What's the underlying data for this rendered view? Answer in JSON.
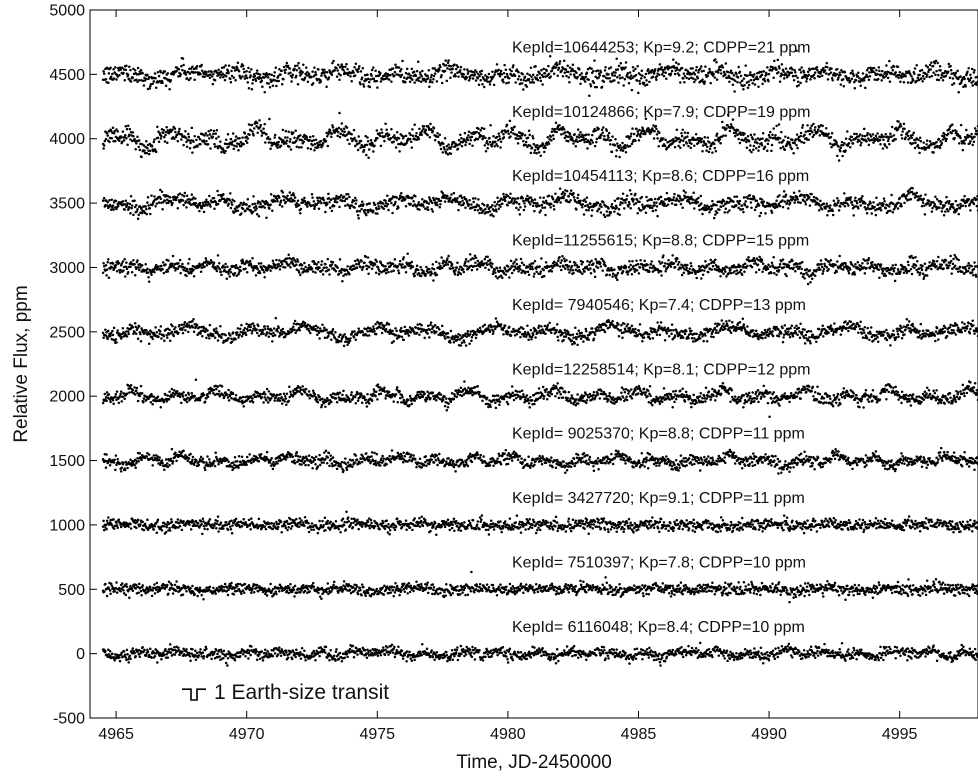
{
  "chart_data": {
    "type": "scatter",
    "xlabel": "Time, JD-2450000",
    "ylabel": "Relative Flux, ppm",
    "xlim": [
      4964,
      4998
    ],
    "ylim": [
      -500,
      5000
    ],
    "xticks": [
      4965,
      4970,
      4975,
      4980,
      4985,
      4990,
      4995
    ],
    "yticks": [
      -500,
      0,
      500,
      1000,
      1500,
      2000,
      2500,
      3000,
      3500,
      4000,
      4500,
      5000
    ],
    "x_start": 4964.5,
    "x_end": 4998,
    "grid": false,
    "legend": {
      "position": "bottom-left",
      "label": "1 Earth-size transit",
      "transit_depth_ppm": 84
    },
    "series": [
      {
        "name": "KepId=10644253; Kp=9.2; CDPP=21 ppm",
        "offset": 4500,
        "scatter": 21,
        "variability": 40
      },
      {
        "name": "KepId=10124866; Kp=7.9; CDPP=19 ppm",
        "offset": 4000,
        "scatter": 19,
        "variability": 70
      },
      {
        "name": "KepId=10454113; Kp=8.6; CDPP=16 ppm",
        "offset": 3500,
        "scatter": 16,
        "variability": 45
      },
      {
        "name": "KepId=11255615; Kp=8.8; CDPP=15 ppm",
        "offset": 3000,
        "scatter": 15,
        "variability": 35
      },
      {
        "name": "KepId= 7940546; Kp=7.4; CDPP=13 ppm",
        "offset": 2500,
        "scatter": 13,
        "variability": 45
      },
      {
        "name": "KepId=12258514; Kp=8.1; CDPP=12 ppm",
        "offset": 2000,
        "scatter": 12,
        "variability": 45
      },
      {
        "name": "KepId= 9025370; Kp=8.8; CDPP=11 ppm",
        "offset": 1500,
        "scatter": 11,
        "variability": 35
      },
      {
        "name": "KepId= 3427720; Kp=9.1; CDPP=11 ppm",
        "offset": 1000,
        "scatter": 11,
        "variability": 12
      },
      {
        "name": "KepId= 7510397; Kp=7.8; CDPP=10 ppm",
        "offset": 500,
        "scatter": 10,
        "variability": 12
      },
      {
        "name": "KepId= 6116048; Kp=8.4; CDPP=10 ppm",
        "offset": 0,
        "scatter": 10,
        "variability": 25
      }
    ]
  }
}
